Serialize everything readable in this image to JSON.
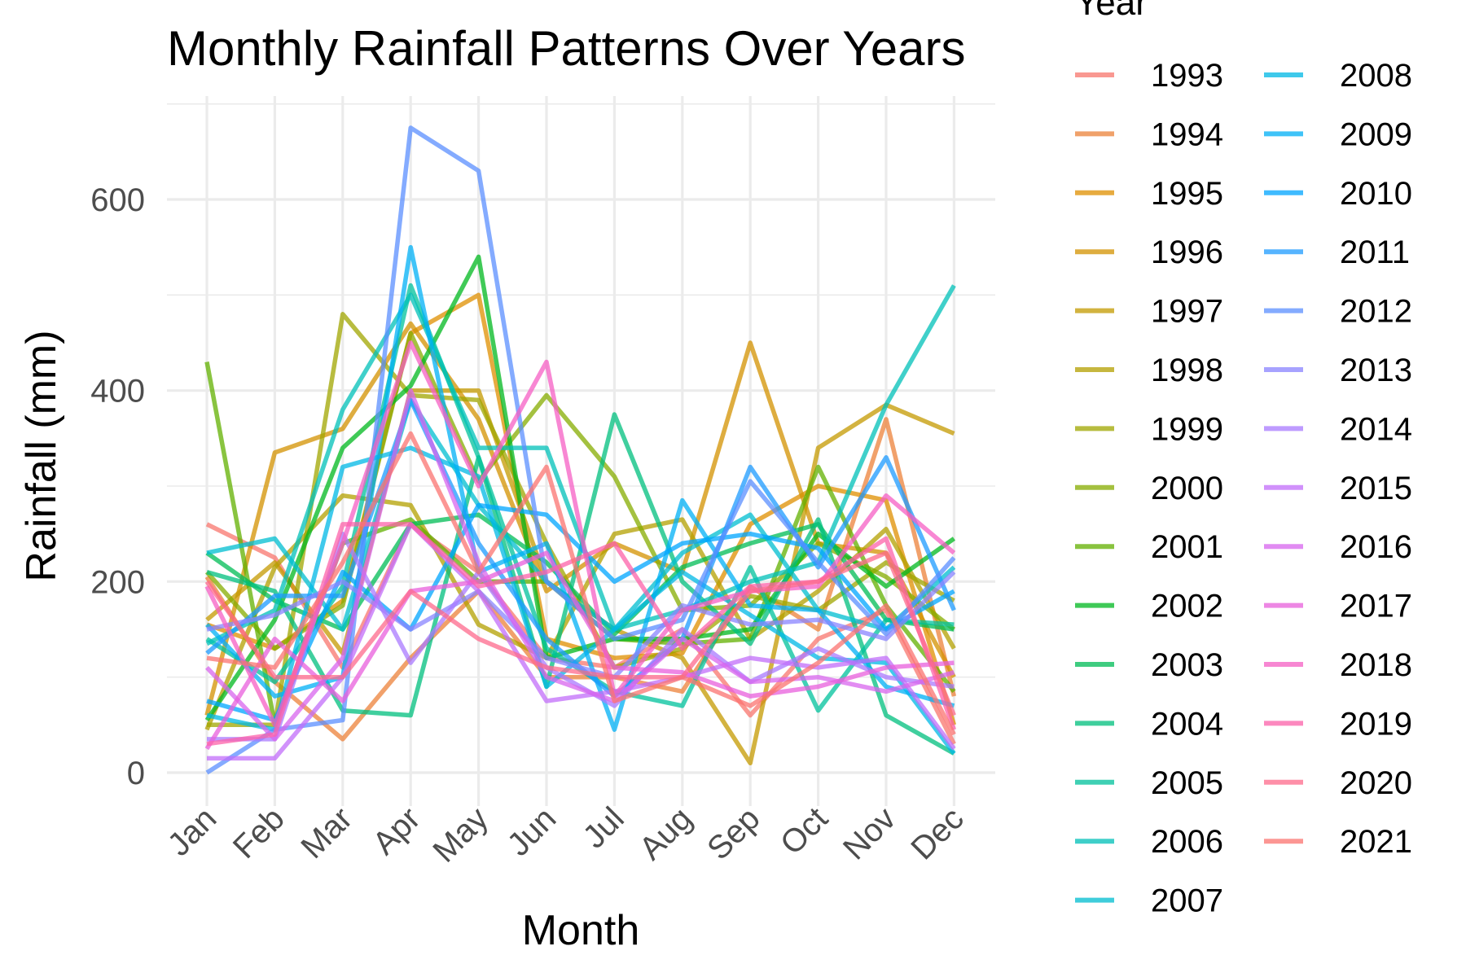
{
  "chart_data": {
    "type": "line",
    "title": "Monthly Rainfall Patterns Over Years",
    "xlabel": "Month",
    "ylabel": "Rainfall (mm)",
    "legend_title": "Year",
    "legend_placement": "right",
    "grid": true,
    "ylim": [
      -30,
      700
    ],
    "yticks": [
      0,
      200,
      400,
      600
    ],
    "categories": [
      "Jan",
      "Feb",
      "Mar",
      "Apr",
      "May",
      "Jun",
      "Jul",
      "Aug",
      "Sep",
      "Oct",
      "Nov",
      "Dec"
    ],
    "series": [
      {
        "name": "1993",
        "color": "#F8766D",
        "values": [
          260,
          225,
          110,
          260,
          210,
          120,
          110,
          150,
          60,
          140,
          170,
          30
        ]
      },
      {
        "name": "1994",
        "color": "#EC8239",
        "values": [
          205,
          95,
          35,
          120,
          190,
          100,
          100,
          85,
          195,
          150,
          370,
          80
        ]
      },
      {
        "name": "1995",
        "color": "#DF8F00",
        "values": [
          155,
          130,
          180,
          460,
          500,
          140,
          120,
          125,
          260,
          300,
          285,
          50
        ]
      },
      {
        "name": "1996",
        "color": "#D39200",
        "values": [
          60,
          335,
          360,
          470,
          370,
          190,
          240,
          210,
          450,
          240,
          230,
          100
        ]
      },
      {
        "name": "1997",
        "color": "#C49A00",
        "values": [
          160,
          220,
          125,
          400,
          400,
          200,
          150,
          120,
          10,
          340,
          385,
          355
        ]
      },
      {
        "name": "1998",
        "color": "#B3A000",
        "values": [
          45,
          215,
          290,
          280,
          155,
          120,
          250,
          265,
          140,
          190,
          255,
          130
        ]
      },
      {
        "name": "1999",
        "color": "#A0A600",
        "values": [
          50,
          50,
          480,
          395,
          390,
          240,
          110,
          130,
          185,
          170,
          220,
          180
        ]
      },
      {
        "name": "2000",
        "color": "#86AC00",
        "values": [
          210,
          130,
          175,
          460,
          305,
          395,
          310,
          170,
          175,
          240,
          205,
          150
        ]
      },
      {
        "name": "2001",
        "color": "#62B000",
        "values": [
          430,
          50,
          240,
          265,
          200,
          200,
          140,
          135,
          140,
          320,
          175,
          85
        ]
      },
      {
        "name": "2002",
        "color": "#00B81F",
        "values": [
          55,
          160,
          340,
          405,
          540,
          120,
          140,
          140,
          150,
          250,
          195,
          245
        ]
      },
      {
        "name": "2003",
        "color": "#00BC56",
        "values": [
          230,
          180,
          150,
          260,
          270,
          220,
          145,
          215,
          240,
          260,
          160,
          150
        ]
      },
      {
        "name": "2004",
        "color": "#00BF7D",
        "values": [
          210,
          190,
          65,
          60,
          330,
          90,
          375,
          200,
          135,
          265,
          60,
          20
        ]
      },
      {
        "name": "2005",
        "color": "#00C19C",
        "values": [
          140,
          95,
          195,
          510,
          330,
          130,
          85,
          70,
          215,
          65,
          160,
          155
        ]
      },
      {
        "name": "2006",
        "color": "#00C0B8",
        "values": [
          135,
          170,
          380,
          500,
          340,
          340,
          150,
          170,
          200,
          220,
          385,
          510
        ]
      },
      {
        "name": "2007",
        "color": "#00BDD0",
        "values": [
          230,
          245,
          150,
          390,
          280,
          200,
          150,
          230,
          270,
          170,
          150,
          215
        ]
      },
      {
        "name": "2008",
        "color": "#00B8E5",
        "values": [
          60,
          45,
          320,
          340,
          310,
          90,
          150,
          210,
          165,
          120,
          115,
          20
        ]
      },
      {
        "name": "2009",
        "color": "#00B0F6",
        "values": [
          155,
          80,
          100,
          550,
          210,
          240,
          45,
          285,
          175,
          170,
          90,
          70
        ]
      },
      {
        "name": "2010",
        "color": "#00A5FF",
        "values": [
          75,
          55,
          210,
          150,
          280,
          270,
          200,
          240,
          250,
          235,
          150,
          190
        ]
      },
      {
        "name": "2011",
        "color": "#1E9BFF",
        "values": [
          125,
          185,
          185,
          390,
          240,
          140,
          80,
          140,
          320,
          215,
          330,
          170
        ]
      },
      {
        "name": "2012",
        "color": "#5B8FFF",
        "values": [
          0,
          45,
          55,
          675,
          630,
          200,
          140,
          160,
          305,
          220,
          145,
          225
        ]
      },
      {
        "name": "2013",
        "color": "#8A84FF",
        "values": [
          150,
          165,
          200,
          150,
          190,
          120,
          100,
          175,
          155,
          160,
          140,
          210
        ]
      },
      {
        "name": "2014",
        "color": "#A97AFF",
        "values": [
          35,
          35,
          250,
          115,
          210,
          110,
          70,
          150,
          95,
          130,
          100,
          90
        ]
      },
      {
        "name": "2015",
        "color": "#C26DFA",
        "values": [
          15,
          15,
          100,
          260,
          190,
          75,
          85,
          100,
          120,
          110,
          120,
          25
        ]
      },
      {
        "name": "2016",
        "color": "#D865EE",
        "values": [
          110,
          35,
          120,
          400,
          220,
          100,
          75,
          140,
          95,
          100,
          85,
          105
        ]
      },
      {
        "name": "2017",
        "color": "#E85FDC",
        "values": [
          25,
          140,
          75,
          190,
          200,
          230,
          110,
          105,
          80,
          90,
          110,
          115
        ]
      },
      {
        "name": "2018",
        "color": "#F55FC4",
        "values": [
          195,
          50,
          240,
          450,
          300,
          430,
          80,
          170,
          190,
          195,
          290,
          230
        ]
      },
      {
        "name": "2019",
        "color": "#FC61A9",
        "values": [
          30,
          40,
          260,
          260,
          195,
          210,
          240,
          130,
          195,
          200,
          245,
          45
        ]
      },
      {
        "name": "2020",
        "color": "#FE6A8C",
        "values": [
          200,
          100,
          100,
          190,
          140,
          110,
          100,
          100,
          190,
          200,
          230,
          60
        ]
      },
      {
        "name": "2021",
        "color": "#FB7370",
        "values": [
          120,
          110,
          220,
          355,
          210,
          320,
          75,
          100,
          70,
          115,
          175,
          40
        ]
      }
    ]
  }
}
